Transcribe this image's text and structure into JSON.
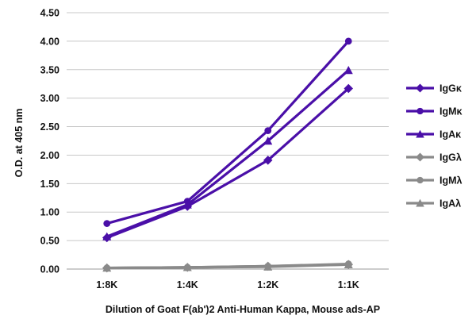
{
  "chart_data": {
    "type": "line",
    "title": "",
    "xlabel": "Dilution of Goat F(ab')2 Anti-Human Kappa, Mouse ads-AP",
    "ylabel": "O.D. at 405 nm",
    "categories": [
      "1:8K",
      "1:4K",
      "1:2K",
      "1:1K"
    ],
    "ylim": [
      0,
      4.5
    ],
    "yticks": [
      "0.00",
      "0.50",
      "1.00",
      "1.50",
      "2.00",
      "2.50",
      "3.00",
      "3.50",
      "4.00",
      "4.50"
    ],
    "grid": "horizontal",
    "legend_position": "right",
    "series": [
      {
        "name": "IgGκ",
        "marker": "diamond",
        "color": "#4a0fa8",
        "values": [
          0.55,
          1.1,
          1.91,
          3.17
        ]
      },
      {
        "name": "IgMκ",
        "marker": "circle",
        "color": "#4a0fa8",
        "values": [
          0.8,
          1.19,
          2.43,
          4.0
        ]
      },
      {
        "name": "IgAκ",
        "marker": "triangle",
        "color": "#4a0fa8",
        "values": [
          0.57,
          1.13,
          2.25,
          3.49
        ]
      },
      {
        "name": "IgGλ",
        "marker": "diamond",
        "color": "#8a8a8a",
        "values": [
          0.02,
          0.03,
          0.05,
          0.08
        ]
      },
      {
        "name": "IgMλ",
        "marker": "circle",
        "color": "#8a8a8a",
        "values": [
          0.02,
          0.03,
          0.05,
          0.09
        ]
      },
      {
        "name": "IgAλ",
        "marker": "triangle",
        "color": "#8a8a8a",
        "values": [
          0.02,
          0.03,
          0.04,
          0.08
        ]
      }
    ]
  }
}
